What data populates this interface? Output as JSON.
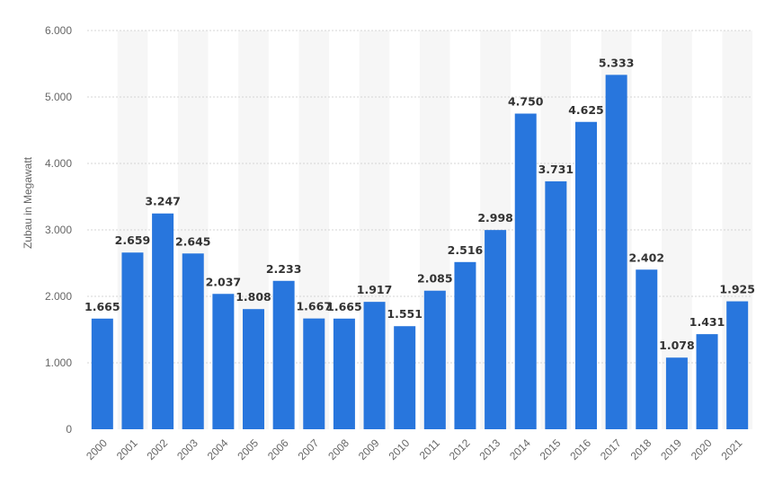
{
  "chart_data": {
    "type": "bar",
    "title": "",
    "xlabel": "",
    "ylabel": "Zubau in Megawatt",
    "ylim": [
      0,
      6000
    ],
    "y_ticks": [
      "0",
      "1.000",
      "2.000",
      "3.000",
      "4.000",
      "5.000",
      "6.000"
    ],
    "y_tick_values": [
      0,
      1000,
      2000,
      3000,
      4000,
      5000,
      6000
    ],
    "categories": [
      "2000",
      "2001",
      "2002",
      "2003",
      "2004",
      "2005",
      "2006",
      "2007",
      "2008",
      "2009",
      "2010",
      "2011",
      "2012",
      "2013",
      "2014",
      "2015",
      "2016",
      "2017",
      "2018",
      "2019",
      "2020",
      "2021"
    ],
    "values": [
      1665,
      2659,
      3247,
      2645,
      2037,
      1808,
      2233,
      1667,
      1665,
      1917,
      1551,
      2085,
      2516,
      2998,
      4750,
      3731,
      4625,
      5333,
      2402,
      1078,
      1431,
      1925
    ],
    "value_labels": [
      "1.665",
      "2.659",
      "3.247",
      "2.645",
      "2.037",
      "1.808",
      "2.233",
      "1.667",
      "1.665",
      "1.917",
      "1.551",
      "2.085",
      "2.516",
      "2.998",
      "4.750",
      "3.731",
      "4.625",
      "5.333",
      "2.402",
      "1.078",
      "1.431",
      "1.925"
    ],
    "bar_color": "#2876dd",
    "band_color": "#f6f6f6",
    "grid_color": "#d4d4d4",
    "grid": true
  }
}
